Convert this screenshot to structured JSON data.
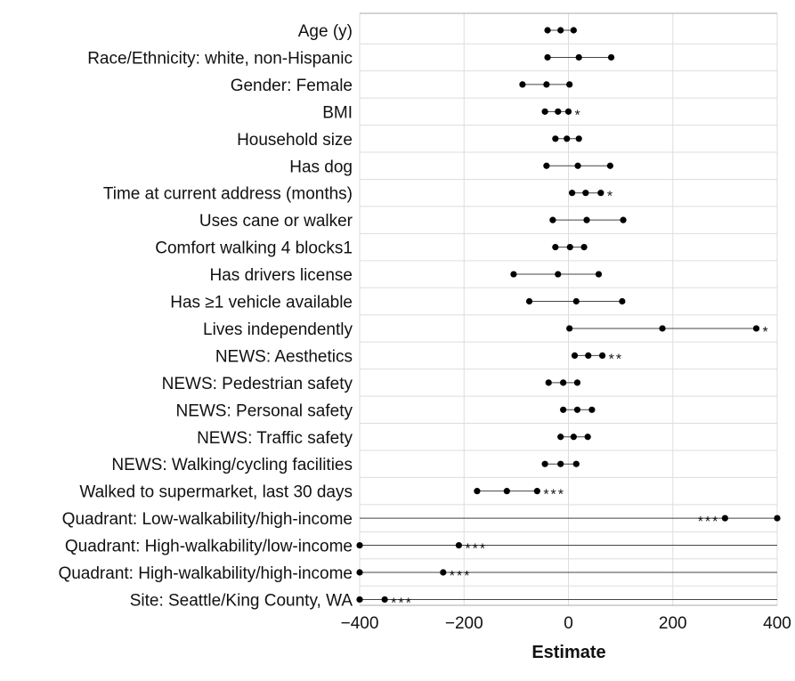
{
  "chart_data": {
    "type": "scatter",
    "subtype": "forest-plot",
    "title": "",
    "xlabel": "Estimate",
    "ylabel": "",
    "xlim": [
      -400,
      400
    ],
    "xticks": [
      -400,
      -200,
      0,
      200,
      400
    ],
    "xtick_labels": [
      "−400",
      "−200",
      "0",
      "200",
      "400"
    ],
    "grid": true,
    "legend": "none",
    "colors": {
      "points": "#000000",
      "grid": "#dddddd",
      "axis": "#aaaaaa"
    },
    "rows": [
      {
        "label": "Age (y)",
        "low": -40,
        "est": -15,
        "high": 10,
        "sig": ""
      },
      {
        "label": "Race/Ethnicity: white, non-Hispanic",
        "low": -40,
        "est": 20,
        "high": 82,
        "sig": ""
      },
      {
        "label": "Gender: Female",
        "low": -88,
        "est": -42,
        "high": 2,
        "sig": ""
      },
      {
        "label": "BMI",
        "low": -45,
        "est": -20,
        "high": 0,
        "sig": "*"
      },
      {
        "label": "Household size",
        "low": -25,
        "est": -3,
        "high": 20,
        "sig": ""
      },
      {
        "label": "Has dog",
        "low": -42,
        "est": 18,
        "high": 80,
        "sig": ""
      },
      {
        "label": "Time at current address (months)",
        "low": 7,
        "est": 33,
        "high": 62,
        "sig": "*"
      },
      {
        "label": "Uses cane or walker",
        "low": -30,
        "est": 35,
        "high": 105,
        "sig": ""
      },
      {
        "label": "Comfort walking 4 blocks1",
        "low": -25,
        "est": 3,
        "high": 30,
        "sig": ""
      },
      {
        "label": "Has drivers license",
        "low": -105,
        "est": -20,
        "high": 58,
        "sig": ""
      },
      {
        "label": "Has ≥1 vehicle available",
        "low": -75,
        "est": 15,
        "high": 103,
        "sig": ""
      },
      {
        "label": "Lives independently",
        "low": 2,
        "est": 180,
        "high": 360,
        "sig": "*"
      },
      {
        "label": "NEWS: Aesthetics",
        "low": 12,
        "est": 38,
        "high": 65,
        "sig": "**"
      },
      {
        "label": "NEWS: Pedestrian safety",
        "low": -38,
        "est": -10,
        "high": 17,
        "sig": ""
      },
      {
        "label": "NEWS: Personal safety",
        "low": -10,
        "est": 17,
        "high": 45,
        "sig": ""
      },
      {
        "label": "NEWS: Traffic safety",
        "low": -15,
        "est": 10,
        "high": 37,
        "sig": ""
      },
      {
        "label": "NEWS: Walking/cycling facilities",
        "low": -45,
        "est": -15,
        "high": 15,
        "sig": ""
      },
      {
        "label": "Walked to supermarket, last 30 days",
        "low": -175,
        "est": -118,
        "high": -60,
        "sig": "***"
      },
      {
        "label": "Quadrant: Low-walkability/high-income",
        "low": null,
        "est": 300,
        "high": 400,
        "sig": "***",
        "sig_side": "left"
      },
      {
        "label": "Quadrant: High-walkability/low-income",
        "low": -400,
        "est": -210,
        "high": null,
        "sig": "***"
      },
      {
        "label": "Quadrant: High-walkability/high-income",
        "low": -400,
        "est": -240,
        "high": null,
        "sig": "***"
      },
      {
        "label": "Site: Seattle/King County, WA",
        "low": -400,
        "est": -352,
        "high": null,
        "sig": "***"
      }
    ]
  }
}
